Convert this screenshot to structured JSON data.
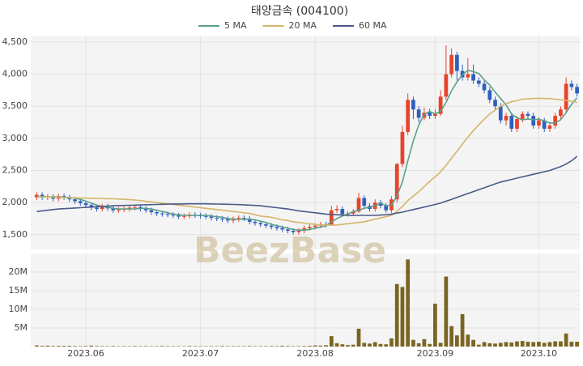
{
  "chart_data": [
    {
      "type": "candlestick",
      "title": "태양금속 (004100)",
      "watermark": "BeezBase",
      "up_color": "#e8432b",
      "down_color": "#2f5fbf",
      "open": [
        2080,
        2120,
        2080,
        2090,
        2060,
        2100,
        2080,
        2050,
        2020,
        1990,
        1960,
        1920,
        1900,
        1940,
        1910,
        1880,
        1890,
        1900,
        1920,
        1930,
        1900,
        1880,
        1850,
        1830,
        1820,
        1810,
        1800,
        1780,
        1790,
        1810,
        1800,
        1790,
        1780,
        1760,
        1750,
        1740,
        1720,
        1740,
        1760,
        1750,
        1700,
        1680,
        1660,
        1640,
        1620,
        1600,
        1580,
        1560,
        1540,
        1560,
        1600,
        1620,
        1640,
        1660,
        1650,
        1880,
        1900,
        1820,
        1830,
        1860,
        2070,
        1950,
        1900,
        2000,
        1950,
        1880,
        2050,
        2600,
        3100,
        3600,
        3450,
        3320,
        3400,
        3350,
        3380,
        3650,
        4000,
        4300,
        4050,
        3950,
        4000,
        3900,
        3850,
        3750,
        3600,
        3500,
        3280,
        3350,
        3150,
        3300,
        3380,
        3350,
        3200,
        3280,
        3150,
        3200,
        3350,
        3450,
        3850,
        3800
      ],
      "high": [
        2160,
        2160,
        2130,
        2130,
        2140,
        2140,
        2120,
        2090,
        2060,
        2030,
        2000,
        1960,
        1980,
        1980,
        1950,
        1930,
        1940,
        1960,
        1970,
        1970,
        1940,
        1920,
        1890,
        1870,
        1860,
        1850,
        1840,
        1830,
        1850,
        1850,
        1840,
        1830,
        1820,
        1800,
        1790,
        1780,
        1780,
        1800,
        1800,
        1790,
        1740,
        1720,
        1700,
        1680,
        1660,
        1640,
        1620,
        1600,
        1600,
        1640,
        1660,
        1680,
        1700,
        1700,
        1950,
        1960,
        1940,
        1870,
        1900,
        2150,
        2110,
        1990,
        2050,
        2040,
        1990,
        2100,
        2620,
        3200,
        3700,
        3650,
        3500,
        3480,
        3460,
        3450,
        3750,
        4450,
        4400,
        4350,
        4150,
        4250,
        4150,
        3950,
        3900,
        3800,
        3650,
        3550,
        3400,
        3400,
        3350,
        3420,
        3420,
        3400,
        3330,
        3320,
        3250,
        3400,
        3500,
        3950,
        3900,
        3850
      ],
      "low": [
        2040,
        2040,
        2040,
        2020,
        2020,
        2040,
        2010,
        1980,
        1950,
        1920,
        1880,
        1860,
        1860,
        1870,
        1840,
        1840,
        1850,
        1860,
        1880,
        1860,
        1840,
        1810,
        1790,
        1780,
        1770,
        1760,
        1740,
        1740,
        1750,
        1760,
        1750,
        1740,
        1720,
        1710,
        1700,
        1680,
        1680,
        1700,
        1710,
        1660,
        1640,
        1620,
        1600,
        1580,
        1560,
        1540,
        1520,
        1500,
        1500,
        1520,
        1560,
        1580,
        1600,
        1610,
        1640,
        1840,
        1780,
        1780,
        1790,
        1840,
        1910,
        1860,
        1860,
        1910,
        1840,
        1840,
        2000,
        2550,
        3050,
        3300,
        3250,
        3280,
        3300,
        3300,
        3350,
        3600,
        3950,
        3900,
        3900,
        3900,
        3850,
        3800,
        3700,
        3550,
        3450,
        3230,
        3200,
        3100,
        3100,
        3250,
        3300,
        3150,
        3150,
        3100,
        3100,
        3150,
        3300,
        3400,
        3750,
        3650
      ],
      "close": [
        2120,
        2080,
        2090,
        2060,
        2100,
        2080,
        2050,
        2020,
        1990,
        1960,
        1920,
        1900,
        1940,
        1910,
        1880,
        1890,
        1900,
        1920,
        1930,
        1900,
        1880,
        1850,
        1830,
        1820,
        1810,
        1800,
        1780,
        1790,
        1810,
        1800,
        1790,
        1780,
        1760,
        1750,
        1740,
        1720,
        1740,
        1760,
        1750,
        1700,
        1680,
        1660,
        1640,
        1620,
        1600,
        1580,
        1560,
        1540,
        1560,
        1600,
        1620,
        1640,
        1660,
        1650,
        1880,
        1900,
        1820,
        1830,
        1860,
        2070,
        1950,
        1900,
        2000,
        1950,
        1880,
        2050,
        2600,
        3100,
        3600,
        3450,
        3320,
        3400,
        3350,
        3380,
        3650,
        4000,
        4300,
        4050,
        3950,
        4000,
        3900,
        3850,
        3750,
        3600,
        3500,
        3280,
        3350,
        3150,
        3300,
        3380,
        3350,
        3200,
        3280,
        3150,
        3200,
        3350,
        3450,
        3850,
        3800,
        3700
      ],
      "series": [
        {
          "name": "5 MA",
          "color": "#5ba08a",
          "values": [
            2090,
            2090,
            2090,
            2090,
            2090,
            2080,
            2080,
            2070,
            2050,
            2020,
            1990,
            1960,
            1940,
            1930,
            1910,
            1900,
            1900,
            1900,
            1900,
            1910,
            1910,
            1900,
            1880,
            1860,
            1840,
            1820,
            1810,
            1800,
            1800,
            1800,
            1800,
            1800,
            1790,
            1780,
            1770,
            1750,
            1740,
            1740,
            1740,
            1740,
            1730,
            1710,
            1690,
            1660,
            1640,
            1620,
            1600,
            1580,
            1570,
            1570,
            1580,
            1600,
            1620,
            1640,
            1700,
            1750,
            1790,
            1820,
            1860,
            1880,
            1910,
            1930,
            1950,
            1990,
            1950,
            1960,
            2100,
            2320,
            2650,
            2960,
            3210,
            3370,
            3420,
            3380,
            3420,
            3560,
            3740,
            3880,
            3990,
            4060,
            4040,
            4010,
            3910,
            3830,
            3720,
            3620,
            3520,
            3380,
            3320,
            3290,
            3300,
            3290,
            3300,
            3270,
            3240,
            3240,
            3290,
            3400,
            3530,
            3630
          ]
        },
        {
          "name": "20 MA",
          "color": "#d4b56a",
          "values": [
            2090,
            2090,
            2088,
            2085,
            2082,
            2078,
            2075,
            2072,
            2070,
            2068,
            2066,
            2064,
            2062,
            2060,
            2058,
            2055,
            2050,
            2045,
            2040,
            2030,
            2020,
            2010,
            2000,
            1990,
            1980,
            1970,
            1960,
            1950,
            1940,
            1930,
            1920,
            1910,
            1900,
            1890,
            1880,
            1870,
            1860,
            1850,
            1840,
            1830,
            1810,
            1790,
            1780,
            1770,
            1750,
            1730,
            1720,
            1700,
            1690,
            1680,
            1670,
            1660,
            1650,
            1650,
            1650,
            1650,
            1660,
            1670,
            1680,
            1690,
            1700,
            1720,
            1740,
            1760,
            1780,
            1800,
            1860,
            1940,
            2030,
            2100,
            2170,
            2250,
            2330,
            2400,
            2480,
            2580,
            2690,
            2800,
            2910,
            3020,
            3120,
            3210,
            3300,
            3380,
            3440,
            3500,
            3540,
            3570,
            3590,
            3610,
            3615,
            3620,
            3625,
            3620,
            3620,
            3610,
            3600,
            3590,
            3580,
            3560
          ]
        },
        {
          "name": "60 MA",
          "color": "#4a5a8a",
          "values": [
            1860,
            1870,
            1880,
            1890,
            1900,
            1905,
            1910,
            1915,
            1920,
            1925,
            1930,
            1935,
            1940,
            1945,
            1950,
            1952,
            1955,
            1958,
            1960,
            1962,
            1965,
            1968,
            1970,
            1972,
            1975,
            1977,
            1978,
            1979,
            1980,
            1980,
            1980,
            1980,
            1978,
            1976,
            1974,
            1972,
            1970,
            1968,
            1965,
            1960,
            1955,
            1950,
            1940,
            1930,
            1920,
            1910,
            1900,
            1885,
            1870,
            1860,
            1850,
            1840,
            1830,
            1820,
            1815,
            1810,
            1805,
            1800,
            1800,
            1800,
            1800,
            1800,
            1800,
            1805,
            1810,
            1820,
            1835,
            1850,
            1870,
            1890,
            1910,
            1930,
            1950,
            1970,
            1990,
            2020,
            2050,
            2080,
            2110,
            2140,
            2170,
            2200,
            2230,
            2260,
            2290,
            2320,
            2340,
            2360,
            2380,
            2400,
            2420,
            2440,
            2460,
            2480,
            2500,
            2530,
            2560,
            2600,
            2650,
            2720
          ]
        }
      ],
      "ylim": [
        1270,
        4600
      ],
      "yticks": [
        {
          "value": 1500,
          "label": "1,500"
        },
        {
          "value": 2000,
          "label": "2,000"
        },
        {
          "value": 2500,
          "label": "2,500"
        },
        {
          "value": 3000,
          "label": "3,000"
        },
        {
          "value": 3500,
          "label": "3,500"
        },
        {
          "value": 4000,
          "label": "4,000"
        },
        {
          "value": 4500,
          "label": "4,500"
        }
      ],
      "grid": true
    },
    {
      "type": "bar",
      "color": "#7a6520",
      "categories": [
        null,
        null,
        null,
        null,
        null,
        null,
        null,
        null,
        null,
        "2023.06",
        null,
        null,
        null,
        null,
        null,
        null,
        null,
        null,
        null,
        null,
        null,
        null,
        null,
        null,
        null,
        null,
        null,
        null,
        null,
        null,
        "2023.07",
        null,
        null,
        null,
        null,
        null,
        null,
        null,
        null,
        null,
        null,
        null,
        null,
        null,
        null,
        null,
        null,
        null,
        null,
        null,
        null,
        "2023.08",
        null,
        null,
        null,
        null,
        null,
        null,
        null,
        null,
        null,
        null,
        null,
        null,
        null,
        null,
        null,
        null,
        null,
        null,
        null,
        null,
        null,
        "2023.09",
        null,
        null,
        null,
        null,
        null,
        null,
        null,
        null,
        null,
        null,
        null,
        null,
        null,
        null,
        null,
        null,
        null,
        null,
        "2023.10",
        null,
        null,
        null,
        null,
        null,
        null,
        null
      ],
      "values": [
        300000,
        200000,
        250000,
        150000,
        200000,
        180000,
        200000,
        150000,
        120000,
        150000,
        250000,
        150000,
        120000,
        100000,
        150000,
        100000,
        120000,
        100000,
        150000,
        100000,
        120000,
        100000,
        100000,
        150000,
        120000,
        100000,
        100000,
        100000,
        150000,
        120000,
        100000,
        100000,
        120000,
        100000,
        150000,
        100000,
        120000,
        100000,
        100000,
        150000,
        120000,
        100000,
        100000,
        150000,
        120000,
        200000,
        150000,
        100000,
        120000,
        150000,
        200000,
        300000,
        250000,
        350000,
        2800000,
        900000,
        600000,
        400000,
        500000,
        4800000,
        1000000,
        800000,
        1200000,
        700000,
        600000,
        2200000,
        16800000,
        16000000,
        23400000,
        1800000,
        900000,
        2000000,
        700000,
        11500000,
        1000000,
        18800000,
        5500000,
        3000000,
        8700000,
        3200000,
        1800000,
        500000,
        1200000,
        900000,
        800000,
        1000000,
        1200000,
        1100000,
        1400000,
        1500000,
        1300000,
        1200000,
        1300000,
        1000000,
        1200000,
        1400000,
        1400000,
        3500000,
        1300000,
        1300000
      ],
      "ylim": [
        0,
        25000000
      ],
      "yticks": [
        {
          "value": 5000000,
          "label": "5M"
        },
        {
          "value": 10000000,
          "label": "10M"
        },
        {
          "value": 15000000,
          "label": "15M"
        },
        {
          "value": 20000000,
          "label": "20M"
        }
      ],
      "grid": true
    }
  ]
}
